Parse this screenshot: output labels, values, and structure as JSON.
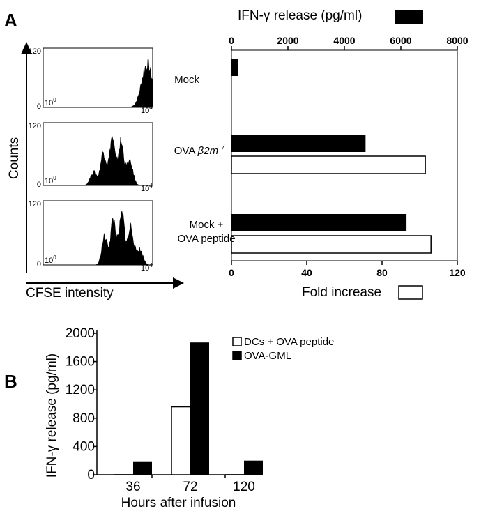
{
  "panel_a_letter": "A",
  "panel_b_letter": "B",
  "chart_data": [
    {
      "type": "bar",
      "orientation": "horizontal",
      "title": "",
      "top_axis_label": "IFN-γ release (pg/ml)",
      "bottom_axis_label": "Fold increase",
      "top_ticks": [
        "0",
        "2000",
        "4000",
        "6000",
        "8000"
      ],
      "bottom_ticks": [
        "0",
        "40",
        "80",
        "120"
      ],
      "top_xlim": [
        0,
        8000
      ],
      "bottom_xlim": [
        0,
        120
      ],
      "categories": [
        {
          "label_main": "Mock",
          "label_italic": "",
          "label_sup": "",
          "label_line2": ""
        },
        {
          "label_main": "OVA ",
          "label_italic": "β2m",
          "label_sup": "–/–",
          "label_line2": ""
        },
        {
          "label_main": "Mock +",
          "label_italic": "",
          "label_sup": "",
          "label_line2": "OVA peptide"
        }
      ],
      "series": [
        {
          "name": "IFN-γ release (pg/ml)",
          "color": "#000000",
          "scale": "top",
          "values": [
            230,
            4750,
            6200
          ]
        },
        {
          "name": "Fold increase",
          "color": "#ffffff",
          "scale": "bottom",
          "values": [
            null,
            103,
            106
          ]
        }
      ]
    },
    {
      "type": "histogram",
      "xlabel": "CFSE intensity",
      "ylabel": "Counts",
      "y_tick_labels": [
        "0",
        "120"
      ],
      "x_tick_labels": [
        "10",
        "0",
        "10",
        "4"
      ],
      "log_x": true,
      "panels": [
        {
          "name": "mock",
          "peaks": [
            {
              "center": 0.95,
              "height": 0.75,
              "width": 0.05
            }
          ]
        },
        {
          "name": "ova-b2m",
          "peaks": [
            {
              "center": 0.55,
              "height": 0.55,
              "width": 0.025
            },
            {
              "center": 0.63,
              "height": 0.78,
              "width": 0.025
            },
            {
              "center": 0.71,
              "height": 0.7,
              "width": 0.025
            },
            {
              "center": 0.79,
              "height": 0.38,
              "width": 0.03
            },
            {
              "center": 0.46,
              "height": 0.22,
              "width": 0.03
            }
          ]
        },
        {
          "name": "mock-ova-peptide",
          "peaks": [
            {
              "center": 0.56,
              "height": 0.45,
              "width": 0.025
            },
            {
              "center": 0.64,
              "height": 0.72,
              "width": 0.025
            },
            {
              "center": 0.72,
              "height": 0.8,
              "width": 0.025
            },
            {
              "center": 0.8,
              "height": 0.6,
              "width": 0.025
            },
            {
              "center": 0.88,
              "height": 0.25,
              "width": 0.03
            }
          ]
        }
      ]
    },
    {
      "type": "bar",
      "title": "",
      "xlabel": "Hours after infusion",
      "ylabel": "IFN-γ release (pg/ml)",
      "categories": [
        "36",
        "72",
        "120"
      ],
      "y_ticks": [
        "0",
        "400",
        "800",
        "1200",
        "1600",
        "2000"
      ],
      "ylim": [
        0,
        2000
      ],
      "legend_position": "top-right",
      "series": [
        {
          "name": "DCs + OVA peptide",
          "color": "#ffffff",
          "values": [
            0,
            960,
            0
          ]
        },
        {
          "name": "OVA-GML",
          "color": "#000000",
          "values": [
            190,
            1870,
            200
          ]
        }
      ]
    }
  ]
}
